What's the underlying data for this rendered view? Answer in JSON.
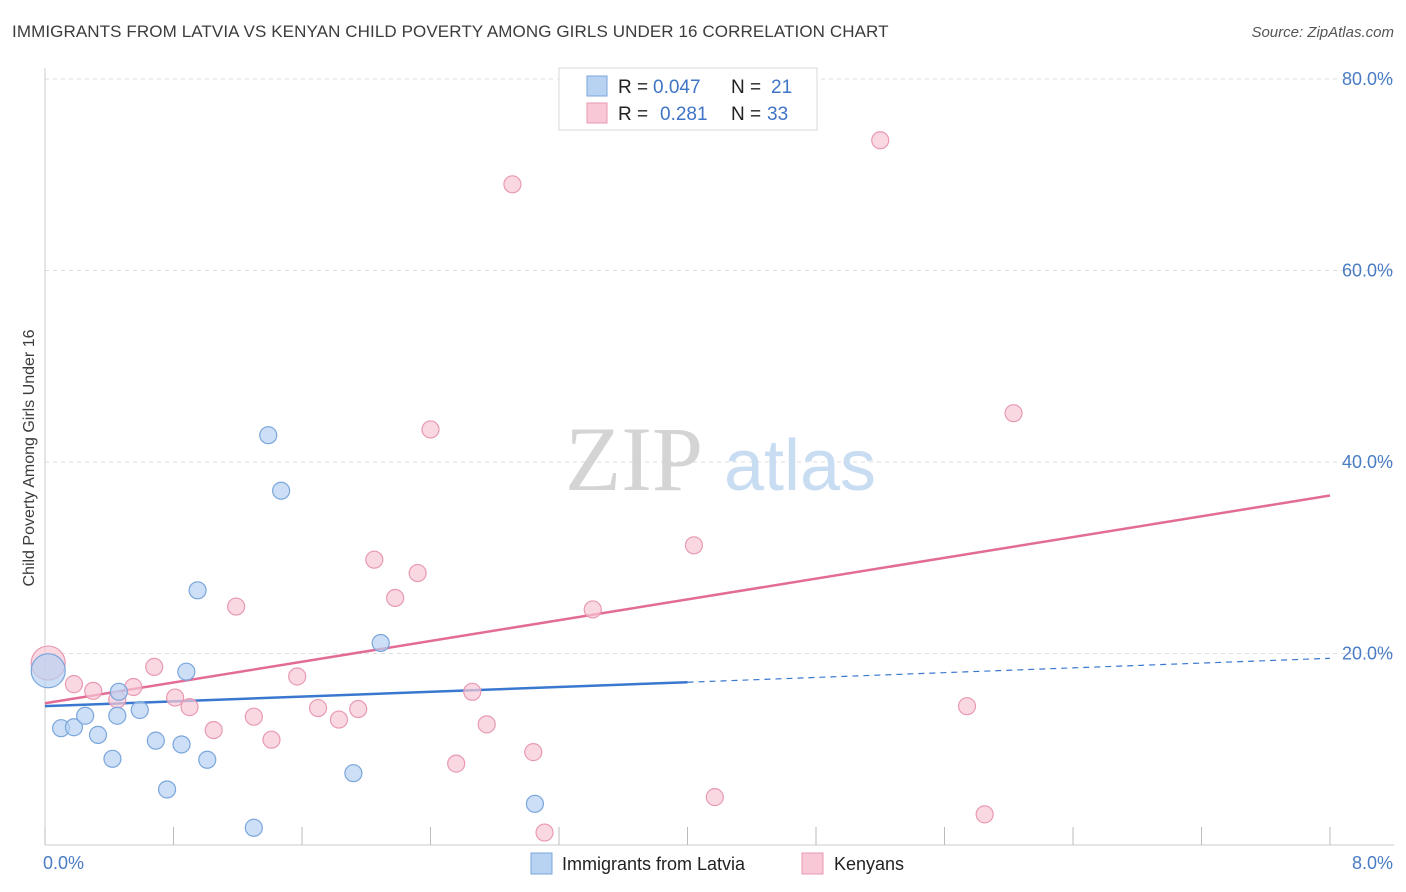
{
  "title": "IMMIGRANTS FROM LATVIA VS KENYAN CHILD POVERTY AMONG GIRLS UNDER 16 CORRELATION CHART",
  "source": "Source: ZipAtlas.com",
  "watermark": {
    "zip": "ZIP",
    "atlas": "atlas"
  },
  "colors": {
    "blue_fill": "#b8d2f2",
    "blue_stroke": "#7aa6dc",
    "blue_line": "#3a78d0",
    "pink_fill": "#f8c8d6",
    "pink_stroke": "#e89ab2",
    "pink_line": "#e26c96",
    "grid": "#dddddd",
    "tick_text": "#4a7cc4"
  },
  "legend": {
    "rows": [
      {
        "r_label": "R =",
        "r_value": "0.047",
        "n_label": "N =",
        "n_value": "21"
      },
      {
        "r_label": "R =",
        "r_value": "0.281",
        "n_label": "N =",
        "n_value": "33"
      }
    ]
  },
  "chart_data": {
    "type": "scatter",
    "title": "IMMIGRANTS FROM LATVIA VS KENYAN CHILD POVERTY AMONG GIRLS UNDER 16 CORRELATION CHART",
    "xlabel": "",
    "ylabel": "Child Poverty Among Girls Under 16",
    "xlim": [
      0,
      8
    ],
    "ylim": [
      0,
      80
    ],
    "x_tick_labels": [
      "0.0%",
      "8.0%"
    ],
    "y_ticks": [
      20,
      40,
      60,
      80
    ],
    "y_tick_labels": [
      "20.0%",
      "40.0%",
      "60.0%",
      "80.0%"
    ],
    "series": [
      {
        "name": "Immigrants from Latvia",
        "color": "blue",
        "points": [
          {
            "x": 0.02,
            "y": 18.2,
            "big": true
          },
          {
            "x": 0.1,
            "y": 12.2
          },
          {
            "x": 0.18,
            "y": 12.3
          },
          {
            "x": 0.25,
            "y": 13.5
          },
          {
            "x": 0.33,
            "y": 11.5
          },
          {
            "x": 0.42,
            "y": 9.0
          },
          {
            "x": 0.45,
            "y": 13.5
          },
          {
            "x": 0.46,
            "y": 16.0
          },
          {
            "x": 0.59,
            "y": 14.1
          },
          {
            "x": 0.69,
            "y": 10.9
          },
          {
            "x": 0.76,
            "y": 5.8
          },
          {
            "x": 0.85,
            "y": 10.5
          },
          {
            "x": 0.88,
            "y": 18.1
          },
          {
            "x": 0.95,
            "y": 26.6
          },
          {
            "x": 1.01,
            "y": 8.9
          },
          {
            "x": 1.3,
            "y": 1.8
          },
          {
            "x": 1.39,
            "y": 42.8
          },
          {
            "x": 1.47,
            "y": 37.0
          },
          {
            "x": 1.92,
            "y": 7.5
          },
          {
            "x": 2.09,
            "y": 21.1
          },
          {
            "x": 3.05,
            "y": 4.3
          }
        ],
        "trend": {
          "x0": 0,
          "y0": 14.5,
          "x1": 4.0,
          "y1": 17.0,
          "dash_x1": 8.0,
          "dash_y1": 19.5
        }
      },
      {
        "name": "Kenyans",
        "color": "pink",
        "points": [
          {
            "x": 0.02,
            "y": 19.0,
            "big": true
          },
          {
            "x": 0.18,
            "y": 16.8
          },
          {
            "x": 0.3,
            "y": 16.1
          },
          {
            "x": 0.45,
            "y": 15.2
          },
          {
            "x": 0.55,
            "y": 16.5
          },
          {
            "x": 0.68,
            "y": 18.6
          },
          {
            "x": 0.81,
            "y": 15.4
          },
          {
            "x": 0.9,
            "y": 14.4
          },
          {
            "x": 1.05,
            "y": 12.0
          },
          {
            "x": 1.19,
            "y": 24.9
          },
          {
            "x": 1.3,
            "y": 13.4
          },
          {
            "x": 1.41,
            "y": 11.0
          },
          {
            "x": 1.57,
            "y": 17.6
          },
          {
            "x": 1.7,
            "y": 14.3
          },
          {
            "x": 1.83,
            "y": 13.1
          },
          {
            "x": 1.95,
            "y": 14.2
          },
          {
            "x": 2.05,
            "y": 29.8
          },
          {
            "x": 2.18,
            "y": 25.8
          },
          {
            "x": 2.32,
            "y": 28.4
          },
          {
            "x": 2.4,
            "y": 43.4
          },
          {
            "x": 2.56,
            "y": 8.5
          },
          {
            "x": 2.66,
            "y": 16.0
          },
          {
            "x": 2.75,
            "y": 12.6
          },
          {
            "x": 2.91,
            "y": 69.0
          },
          {
            "x": 3.04,
            "y": 9.7
          },
          {
            "x": 3.11,
            "y": 1.3
          },
          {
            "x": 3.41,
            "y": 24.6
          },
          {
            "x": 4.04,
            "y": 31.3
          },
          {
            "x": 4.17,
            "y": 5.0
          },
          {
            "x": 5.2,
            "y": 73.6
          },
          {
            "x": 5.74,
            "y": 14.5
          },
          {
            "x": 5.85,
            "y": 3.2
          },
          {
            "x": 6.03,
            "y": 45.1
          }
        ],
        "trend": {
          "x0": 0,
          "y0": 14.8,
          "x1": 8.0,
          "y1": 36.5
        }
      }
    ],
    "legend_position": "top-center",
    "grid": true
  }
}
